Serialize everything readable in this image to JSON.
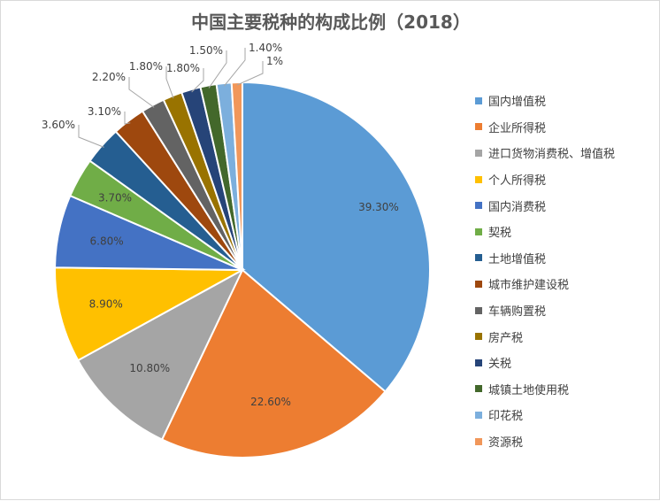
{
  "chart_data": {
    "type": "pie",
    "title": "中国主要税种的构成比例（2018）",
    "legend_position": "right",
    "slices": [
      {
        "name": "国内增值税",
        "value": 39.3,
        "label": "39.30%",
        "color": "#5b9bd5"
      },
      {
        "name": "企业所得税",
        "value": 22.6,
        "label": "22.60%",
        "color": "#ed7d31"
      },
      {
        "name": "进口货物消费税、增值税",
        "value": 10.8,
        "label": "10.80%",
        "color": "#a5a5a5"
      },
      {
        "name": "个人所得税",
        "value": 8.9,
        "label": "8.90%",
        "color": "#ffc000"
      },
      {
        "name": "国内消费税",
        "value": 6.8,
        "label": "6.80%",
        "color": "#4472c4"
      },
      {
        "name": "契税",
        "value": 3.7,
        "label": "3.70%",
        "color": "#70ad47"
      },
      {
        "name": "土地增值税",
        "value": 3.6,
        "label": "3.60%",
        "color": "#255e91"
      },
      {
        "name": "城市维护建设税",
        "value": 3.1,
        "label": "3.10%",
        "color": "#9e480e"
      },
      {
        "name": "车辆购置税",
        "value": 2.2,
        "label": "2.20%",
        "color": "#636363"
      },
      {
        "name": "房产税",
        "value": 1.8,
        "label": "1.80%",
        "color": "#997300"
      },
      {
        "name": "关税",
        "value": 1.8,
        "label": "1.80%",
        "color": "#264478"
      },
      {
        "name": "城镇土地使用税",
        "value": 1.5,
        "label": "1.50%",
        "color": "#43682b"
      },
      {
        "name": "印花税",
        "value": 1.4,
        "label": "1.40%",
        "color": "#7cafdd"
      },
      {
        "name": "资源税",
        "value": 1.0,
        "label": "1%",
        "color": "#f1975a"
      }
    ]
  }
}
